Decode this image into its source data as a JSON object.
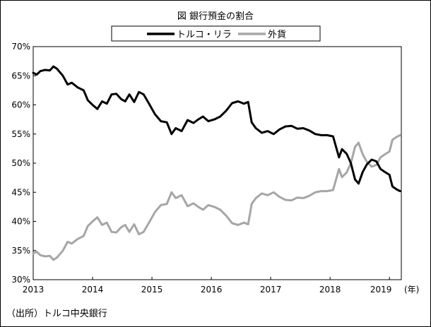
{
  "chart_data": {
    "type": "line",
    "title": "図  銀行預金の割合",
    "source": "（出所）トルコ中央銀行",
    "x_unit_label": "(年)",
    "xlim": [
      2013.0,
      2019.2
    ],
    "ylim": [
      30,
      70
    ],
    "y_ticks": [
      "70%",
      "65%",
      "60%",
      "55%",
      "50%",
      "45%",
      "40%",
      "35%",
      "30%"
    ],
    "y_tick_values": [
      70,
      65,
      60,
      55,
      50,
      45,
      40,
      35,
      30
    ],
    "x_ticks": [
      "2013",
      "2014",
      "2015",
      "2016",
      "2017",
      "2018",
      "2019"
    ],
    "x_tick_values": [
      2013,
      2014,
      2015,
      2016,
      2017,
      2018,
      2019
    ],
    "grid": false,
    "legend_position": "top-center",
    "series": [
      {
        "name": "トルコ・リラ",
        "color": "#000000",
        "x": [
          2013.0,
          2013.06,
          2013.12,
          2013.2,
          2013.28,
          2013.34,
          2013.4,
          2013.5,
          2013.58,
          2013.65,
          2013.75,
          2013.85,
          2013.92,
          2014.0,
          2014.08,
          2014.16,
          2014.24,
          2014.32,
          2014.4,
          2014.48,
          2014.55,
          2014.62,
          2014.7,
          2014.78,
          2014.86,
          2014.95,
          2015.05,
          2015.15,
          2015.25,
          2015.33,
          2015.4,
          2015.5,
          2015.6,
          2015.7,
          2015.78,
          2015.86,
          2015.95,
          2016.05,
          2016.15,
          2016.25,
          2016.35,
          2016.45,
          2016.55,
          2016.62,
          2016.68,
          2016.75,
          2016.85,
          2016.95,
          2017.05,
          2017.15,
          2017.25,
          2017.35,
          2017.45,
          2017.55,
          2017.65,
          2017.75,
          2017.85,
          2017.95,
          2018.05,
          2018.15,
          2018.2,
          2018.28,
          2018.35,
          2018.42,
          2018.48,
          2018.55,
          2018.62,
          2018.7,
          2018.78,
          2018.85,
          2018.92,
          2019.0,
          2019.05,
          2019.12,
          2019.18
        ],
        "values": [
          65.5,
          65.2,
          65.8,
          66.0,
          65.9,
          66.6,
          66.2,
          65.0,
          63.5,
          63.8,
          63.0,
          62.5,
          60.8,
          60.0,
          59.3,
          60.6,
          60.2,
          61.8,
          61.9,
          61.0,
          60.6,
          61.8,
          60.5,
          62.2,
          61.8,
          60.2,
          58.4,
          57.2,
          57.0,
          55.0,
          56.0,
          55.5,
          57.4,
          56.9,
          57.5,
          58.0,
          57.2,
          57.5,
          58.0,
          59.0,
          60.3,
          60.6,
          60.2,
          60.5,
          57.0,
          56.0,
          55.2,
          55.5,
          55.0,
          55.8,
          56.3,
          56.4,
          55.9,
          56.0,
          55.6,
          55.0,
          54.8,
          54.8,
          54.6,
          51.0,
          52.4,
          51.6,
          50.0,
          47.2,
          46.5,
          48.5,
          49.8,
          50.6,
          50.3,
          49.0,
          48.5,
          48.0,
          46.0,
          45.5,
          45.2
        ]
      },
      {
        "name": "外貨",
        "color": "#a6a6a6",
        "x": [
          2013.0,
          2013.06,
          2013.12,
          2013.2,
          2013.28,
          2013.34,
          2013.4,
          2013.5,
          2013.58,
          2013.65,
          2013.75,
          2013.85,
          2013.92,
          2014.0,
          2014.08,
          2014.16,
          2014.24,
          2014.32,
          2014.4,
          2014.48,
          2014.55,
          2014.62,
          2014.7,
          2014.78,
          2014.86,
          2014.95,
          2015.05,
          2015.15,
          2015.25,
          2015.33,
          2015.4,
          2015.5,
          2015.6,
          2015.7,
          2015.78,
          2015.86,
          2015.95,
          2016.05,
          2016.15,
          2016.25,
          2016.35,
          2016.45,
          2016.55,
          2016.62,
          2016.68,
          2016.75,
          2016.85,
          2016.95,
          2017.05,
          2017.15,
          2017.25,
          2017.35,
          2017.45,
          2017.55,
          2017.65,
          2017.75,
          2017.85,
          2017.95,
          2018.05,
          2018.15,
          2018.2,
          2018.28,
          2018.35,
          2018.42,
          2018.48,
          2018.55,
          2018.62,
          2018.7,
          2018.78,
          2018.85,
          2018.92,
          2019.0,
          2019.05,
          2019.12,
          2019.18
        ],
        "values": [
          34.5,
          34.8,
          34.2,
          34.0,
          34.1,
          33.4,
          33.8,
          35.0,
          36.5,
          36.2,
          37.0,
          37.5,
          39.2,
          40.0,
          40.7,
          39.4,
          39.8,
          38.2,
          38.1,
          39.0,
          39.4,
          38.2,
          39.5,
          37.8,
          38.2,
          39.8,
          41.6,
          42.8,
          43.0,
          45.0,
          44.0,
          44.5,
          42.6,
          43.1,
          42.5,
          42.0,
          42.8,
          42.5,
          42.0,
          41.0,
          39.7,
          39.4,
          39.8,
          39.5,
          43.0,
          44.0,
          44.8,
          44.5,
          45.0,
          44.2,
          43.7,
          43.6,
          44.1,
          44.0,
          44.4,
          45.0,
          45.2,
          45.2,
          45.4,
          49.0,
          47.6,
          48.4,
          50.0,
          52.8,
          53.5,
          51.5,
          50.2,
          49.4,
          49.7,
          51.0,
          51.5,
          52.0,
          54.0,
          54.5,
          54.8
        ]
      }
    ]
  }
}
